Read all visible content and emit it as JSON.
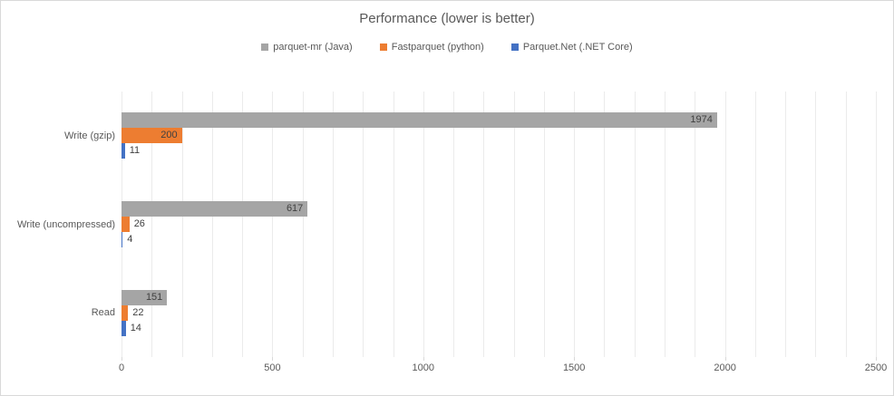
{
  "chart": {
    "title": "Performance (lower is better)",
    "colors": {
      "title_text": "#595959",
      "axis_text": "#595959",
      "value_label_text": "#404040",
      "gridline": "#ebebeb",
      "tick": "#d9d9d9",
      "border": "#d9d9d9",
      "background": "#ffffff"
    }
  },
  "chart_data": {
    "type": "bar",
    "orientation": "horizontal",
    "title": "Performance (lower is better)",
    "categories": [
      "Write (gzip)",
      "Write (uncompressed)",
      "Read"
    ],
    "series": [
      {
        "name": "parquet-mr (Java)",
        "color": "#a5a5a5",
        "values": [
          1974,
          617,
          151
        ]
      },
      {
        "name": "Fastparquet (python)",
        "color": "#ed7d31",
        "values": [
          200,
          26,
          22
        ]
      },
      {
        "name": "Parquet.Net (.NET Core)",
        "color": "#4472c4",
        "values": [
          11,
          4,
          14
        ]
      }
    ],
    "xlabel": "",
    "ylabel": "",
    "xlim": [
      0,
      2500
    ],
    "x_major_ticks": [
      0,
      500,
      1000,
      1500,
      2000,
      2500
    ],
    "x_minor_step": 100,
    "grid": "vertical-minor",
    "legend_position": "top",
    "data_labels": "shown-at-bar-end"
  }
}
